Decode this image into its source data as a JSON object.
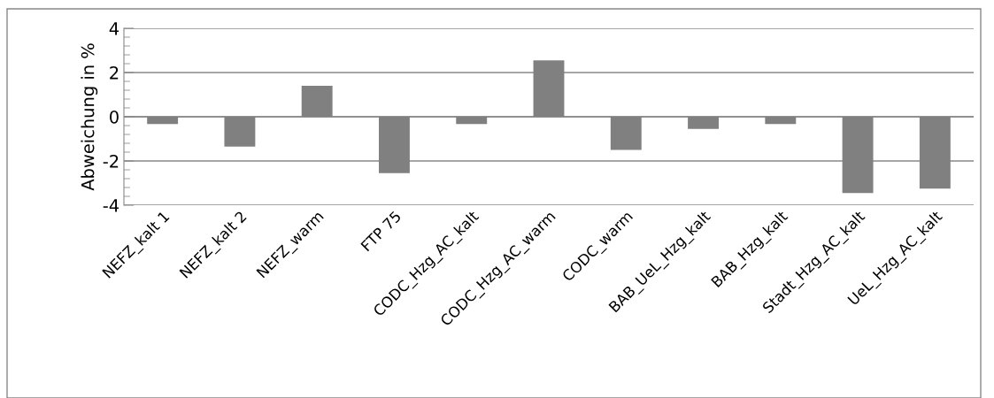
{
  "chart_data": {
    "type": "bar",
    "ylabel": "Abweichung in %",
    "categories": [
      "NEFZ_kalt 1",
      "NEFZ_kalt 2",
      "NEFZ_warm",
      "FTP 75",
      "CODC_Hzg_AC_kalt",
      "CODC_Hzg_AC_warm",
      "CODC_warm",
      "BAB_UeL_Hzg_kalt",
      "BAB_Hzg_kalt",
      "Stadt_Hzg_AC_kalt",
      "UeL_Hzg_AC_kalt"
    ],
    "values": [
      -0.33,
      -1.35,
      1.4,
      -2.55,
      -0.33,
      2.55,
      -1.5,
      -0.55,
      -0.33,
      -3.45,
      -3.25
    ],
    "color": "#808080",
    "ylim": [
      -4,
      4
    ],
    "yticks": [
      -4,
      -2,
      0,
      2,
      4
    ],
    "grid": "y"
  }
}
